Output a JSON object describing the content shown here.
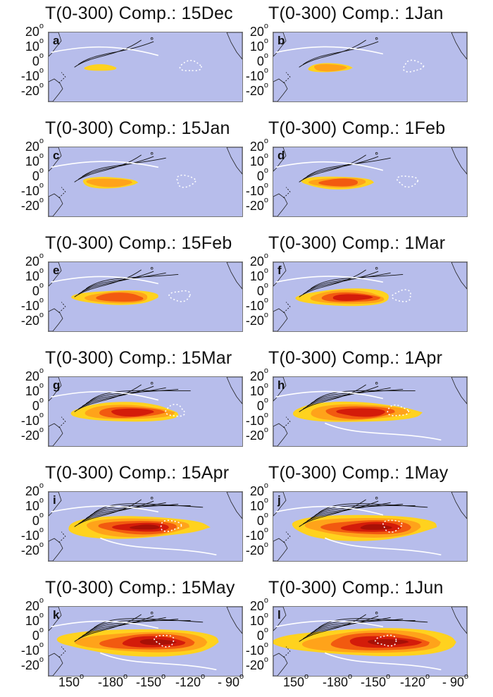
{
  "panels": [
    {
      "id": "a",
      "title": "T(0-300) Comp.: 15Dec",
      "label": "a",
      "stage": 0
    },
    {
      "id": "b",
      "title": "T(0-300) Comp.: 1Jan",
      "label": "b",
      "stage": 1
    },
    {
      "id": "c",
      "title": "T(0-300) Comp.: 15Jan",
      "label": "c",
      "stage": 2
    },
    {
      "id": "d",
      "title": "T(0-300) Comp.: 1Feb",
      "label": "d",
      "stage": 3
    },
    {
      "id": "e",
      "title": "T(0-300) Comp.: 15Feb",
      "label": "e",
      "stage": 4
    },
    {
      "id": "f",
      "title": "T(0-300) Comp.: 1Mar",
      "label": "f",
      "stage": 5
    },
    {
      "id": "g",
      "title": "T(0-300) Comp.: 15Mar",
      "label": "g",
      "stage": 6
    },
    {
      "id": "h",
      "title": "T(0-300) Comp.: 1Apr",
      "label": "h",
      "stage": 7
    },
    {
      "id": "i",
      "title": "T(0-300) Comp.: 15Apr",
      "label": "i",
      "stage": 8
    },
    {
      "id": "j",
      "title": "T(0-300) Comp.: 1May",
      "label": "j",
      "stage": 9
    },
    {
      "id": "k",
      "title": "T(0-300) Comp.: 15May",
      "label": "k",
      "stage": 10
    },
    {
      "id": "l",
      "title": "T(0-300) Comp.: 1Jun",
      "label": "l",
      "stage": 11
    }
  ],
  "y_ticks": [
    "20",
    "10",
    "0",
    "-10",
    "-20"
  ],
  "x_ticks": [
    "150",
    "-180",
    "-150",
    "-120",
    "- 90"
  ],
  "degree_symbol": "o",
  "colors": {
    "ocean": "#b7bdeb",
    "warm_1": "#ffd21e",
    "warm_2": "#ffa31a",
    "warm_3": "#f25a10",
    "warm_4": "#d41c0a",
    "warm_5": "#a81006",
    "contour": "#111111",
    "white_contour": "#ffffff",
    "land": "#b7bdeb"
  }
}
